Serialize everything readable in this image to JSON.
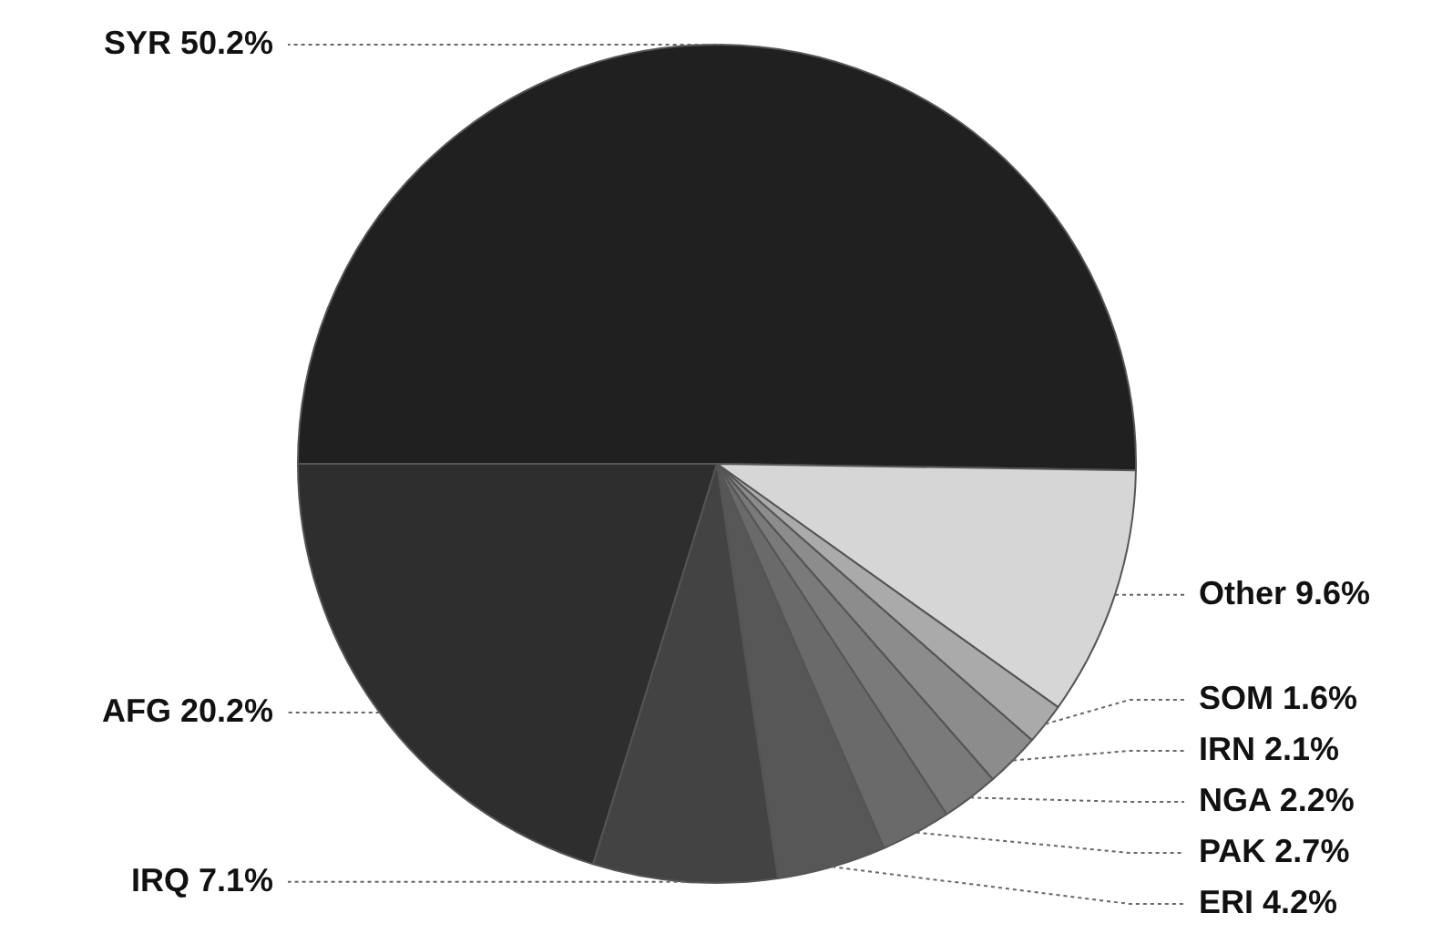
{
  "chart_data": {
    "type": "pie",
    "categories": [
      "SYR",
      "Other",
      "SOM",
      "IRN",
      "NGA",
      "PAK",
      "ERI",
      "IRQ",
      "AFG"
    ],
    "values": [
      50.2,
      9.6,
      1.6,
      2.1,
      2.2,
      2.7,
      4.2,
      7.1,
      20.2
    ],
    "value_labels": [
      "50.2%",
      "9.6%",
      "1.6%",
      "2.1%",
      "2.2%",
      "2.7%",
      "4.2%",
      "7.1%",
      "20.2%"
    ],
    "colors": [
      "#202020",
      "#d6d6d6",
      "#aaaaaa",
      "#8c8c8c",
      "#7a7a7a",
      "#6a6a6a",
      "#575757",
      "#434343",
      "#2e2e2e"
    ],
    "legend": false
  }
}
